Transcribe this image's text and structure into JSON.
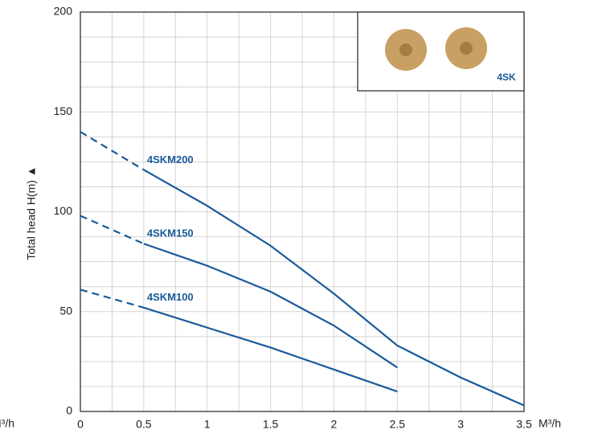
{
  "chart_data": {
    "type": "line",
    "y_label": "Total head H(m) ▲",
    "x_unit": "M³/h",
    "x": [
      0,
      0.5,
      1,
      1.5,
      2,
      2.5,
      3,
      3.5
    ],
    "series": [
      {
        "name": "4SKM200",
        "color": "#1a5a9a",
        "values": [
          140,
          121,
          103,
          83,
          59,
          33,
          17,
          3
        ]
      },
      {
        "name": "4SKM150",
        "color": "#1a5a9a",
        "values": [
          98,
          84,
          73,
          60,
          43,
          22,
          null,
          null
        ]
      },
      {
        "name": "4SKM100",
        "color": "#1a5a9a",
        "values": [
          61,
          52,
          42,
          32,
          21,
          10,
          null,
          null
        ]
      }
    ],
    "dashed_range": [
      0,
      0.5
    ],
    "xlim": [
      0,
      3.5
    ],
    "xticks": [
      0,
      0.5,
      1,
      1.5,
      2,
      2.5,
      3,
      3.5
    ],
    "xminorticks": [
      0.25,
      0.75,
      1.25,
      1.75,
      2.25,
      2.75,
      3.25
    ],
    "ylim": [
      0,
      200
    ],
    "yticks": [
      0,
      50,
      100,
      150,
      200
    ],
    "yminorticks": [
      12.5,
      25,
      37.5,
      62.5,
      75,
      87.5,
      112.5,
      125,
      137.5,
      162.5,
      175,
      187.5
    ],
    "grid": true,
    "inset_label": "4SK"
  }
}
